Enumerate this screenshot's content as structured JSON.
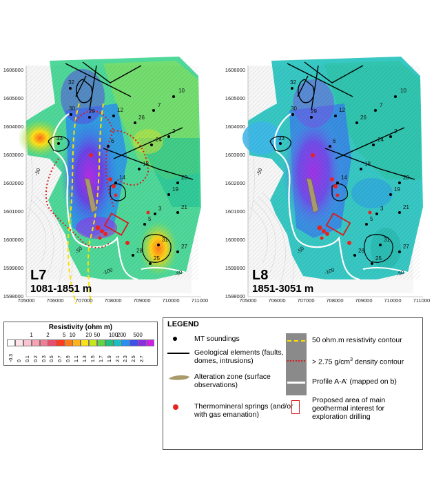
{
  "maps": [
    {
      "title": "L7",
      "depth_range": "1081-1851 m",
      "x_ticks": [
        "705000",
        "706000",
        "707000",
        "708000",
        "709000",
        "710000",
        "711000"
      ],
      "y_ticks": [
        "1606000",
        "1605000",
        "1604000",
        "1603000",
        "1602000",
        "1601000",
        "1600000",
        "1599000",
        "1598000"
      ],
      "sounding_labels": [
        "32",
        "10",
        "30",
        "29",
        "12",
        "7",
        "26",
        "2",
        "33",
        "6",
        "24",
        "20",
        "18",
        "19",
        "14",
        "21",
        "3",
        "5",
        "31",
        "28",
        "27",
        "25"
      ],
      "contour_labels": [
        "-50",
        "-50",
        "-100",
        "-50"
      ]
    },
    {
      "title": "L8",
      "depth_range": "1851-3051 m",
      "x_ticks": [
        "705000",
        "706000",
        "707000",
        "708000",
        "709000",
        "710000",
        "711000"
      ],
      "y_ticks": [
        "1606000",
        "1605000",
        "1604000",
        "1603000",
        "1602000",
        "1601000",
        "1600000",
        "1599000",
        "1598000"
      ],
      "sounding_labels": [
        "32",
        "10",
        "30",
        "29",
        "12",
        "7",
        "26",
        "2",
        "33",
        "6",
        "24",
        "20",
        "18",
        "19",
        "14",
        "21",
        "3",
        "5",
        "31",
        "28",
        "27",
        "25"
      ],
      "contour_labels": [
        "-50",
        "-50",
        "-100",
        "-50"
      ]
    }
  ],
  "colorbar": {
    "title": "Resistivity (ohm m)",
    "top_labels": [
      "1",
      "2",
      "5",
      "10",
      "20",
      "50",
      "100",
      "200",
      "500"
    ],
    "bottom_labels": [
      "-0.3",
      "0",
      "0.1",
      "0.2",
      "0.3",
      "0.5",
      "0.7",
      "0.9",
      "1.1",
      "1.3",
      "1.5",
      "1.7",
      "1.9",
      "2.1",
      "2.3",
      "2.5",
      "2.7"
    ],
    "colors": [
      "#ffffff",
      "#fde2e8",
      "#fbc3cf",
      "#f8a2b4",
      "#f37c95",
      "#e84f6e",
      "#ff3b1f",
      "#ff7a1a",
      "#ffb31a",
      "#ffe11a",
      "#c6e81a",
      "#5ed646",
      "#1fc17d",
      "#19c0c8",
      "#2a8ff0",
      "#3f4fe8",
      "#8a2ee0",
      "#d01de8"
    ]
  },
  "legend": {
    "title": "LEGEND",
    "items": [
      "MT soundings",
      "Geological elements (faults, domes, intrusions)",
      "Alteration zone (surface observations)",
      "Thermomineral springs (and/or with gas emanation)",
      "50 ohm.m resistivity contour",
      "> 2.75 g/cm",
      "3",
      " density contour",
      "Profile A-A' (mapped on b)",
      "Proposed area of main geothermal interest for exploration drilling"
    ],
    "colors": {
      "sounding": "#000000",
      "fault": "#000000",
      "alteration": "#a89a6a",
      "spring": "#e8231f",
      "resistivity_contour": "#ffe000",
      "density_contour": "#d81c1c",
      "profile_panel": "#8a8a8a",
      "drilling_box": "#d81c1c"
    }
  }
}
